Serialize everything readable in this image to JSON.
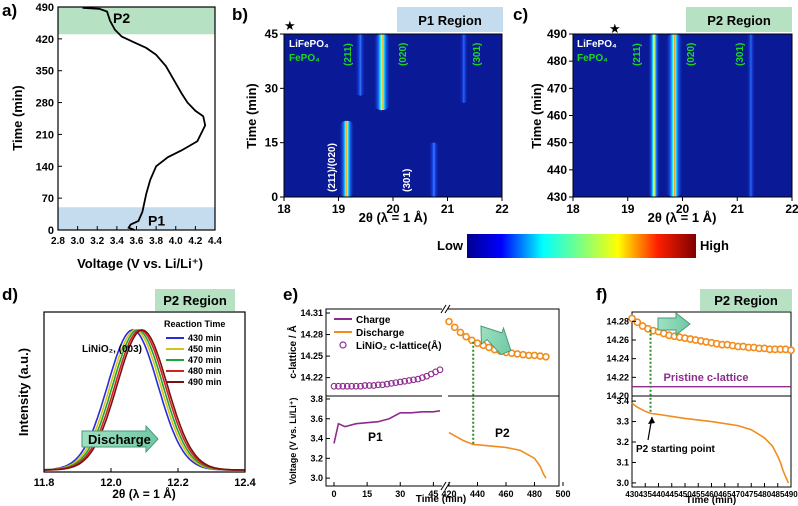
{
  "colors": {
    "p1_band": "#c5dcef",
    "p2_band": "#b6e2c3",
    "charge": "#8e2c8e",
    "discharge": "#f28c1c",
    "heat_bg": "#0a1a96",
    "green_label": "#1fd61f",
    "pristine": "#8e2c8e"
  },
  "panel_labels": {
    "a": "a)",
    "b": "b)",
    "c": "c)",
    "d": "d)",
    "e": "e)",
    "f": "f)"
  },
  "chart_data": [
    {
      "id": "a",
      "type": "line",
      "xlabel": "Voltage (V vs. Li/Li⁺)",
      "ylabel": "Time (min)",
      "xlim": [
        2.8,
        4.4
      ],
      "ylim": [
        0,
        490
      ],
      "xticks": [
        "2.8",
        "3.0",
        "3.2",
        "3.4",
        "3.6",
        "3.8",
        "4.0",
        "4.2",
        "4.4"
      ],
      "yticks": [
        "0",
        "70",
        "140",
        "210",
        "280",
        "350",
        "420",
        "490"
      ],
      "bands": [
        {
          "label": "P1",
          "y": [
            0,
            50
          ]
        },
        {
          "label": "P2",
          "y": [
            430,
            490
          ]
        }
      ],
      "x": [
        3.58,
        3.52,
        3.54,
        3.62,
        3.66,
        3.7,
        3.74,
        3.8,
        3.92,
        4.06,
        4.22,
        4.3,
        4.28,
        4.2,
        4.12,
        4.06,
        3.98,
        3.9,
        3.8,
        3.7,
        3.55,
        3.45,
        3.38,
        3.33,
        3.3,
        3.22,
        3.05
      ],
      "y": [
        0,
        5,
        12,
        20,
        40,
        80,
        110,
        140,
        160,
        175,
        195,
        230,
        250,
        262,
        280,
        300,
        330,
        360,
        385,
        400,
        415,
        425,
        440,
        460,
        480,
        486,
        488
      ]
    },
    {
      "id": "b",
      "type": "heatmap",
      "title": "P1 Region",
      "xlabel": "2θ (λ = 1 Å)",
      "ylabel": "Time (min)",
      "xlim": [
        18,
        22
      ],
      "ylim": [
        0,
        45
      ],
      "xticks": [
        "18",
        "19",
        "20",
        "21",
        "22"
      ],
      "yticks": [
        "0",
        "15",
        "30",
        "45"
      ],
      "legend": [
        "LiFePO₄",
        "FePO₄"
      ],
      "marker": "★",
      "peak_labels": [
        "(211)",
        "(020)",
        "(301)",
        "(211)/(020)",
        "(301)"
      ],
      "peaks": [
        {
          "x": 19.15,
          "y0": 0,
          "y1": 21,
          "w": 0.09,
          "i": 1.0
        },
        {
          "x": 19.8,
          "y0": 24,
          "y1": 45,
          "w": 0.1,
          "i": 0.85
        },
        {
          "x": 19.4,
          "y0": 28,
          "y1": 45,
          "w": 0.06,
          "i": 0.35
        },
        {
          "x": 20.75,
          "y0": 0,
          "y1": 15,
          "w": 0.06,
          "i": 0.4
        },
        {
          "x": 21.3,
          "y0": 26,
          "y1": 45,
          "w": 0.05,
          "i": 0.25
        }
      ]
    },
    {
      "id": "c",
      "type": "heatmap",
      "title": "P2 Region",
      "xlabel": "2θ (λ = 1 Å)",
      "ylabel": "Time (min)",
      "xlim": [
        18,
        22
      ],
      "ylim": [
        430,
        490
      ],
      "xticks": [
        "18",
        "19",
        "20",
        "21",
        "22"
      ],
      "yticks": [
        "430",
        "440",
        "450",
        "460",
        "470",
        "480",
        "490"
      ],
      "legend": [
        "LiFePO₄",
        "FePO₄"
      ],
      "marker": "★",
      "peak_labels": [
        "(211)",
        "(020)",
        "(301)"
      ],
      "peaks": [
        {
          "x": 19.48,
          "y0": 430,
          "y1": 490,
          "w": 0.07,
          "i": 0.55
        },
        {
          "x": 19.85,
          "y0": 430,
          "y1": 490,
          "w": 0.1,
          "i": 1.0
        },
        {
          "x": 21.25,
          "y0": 430,
          "y1": 490,
          "w": 0.05,
          "i": 0.25
        }
      ]
    },
    {
      "id": "colorbar",
      "type": "colorbar",
      "low": "Low",
      "high": "High"
    },
    {
      "id": "d",
      "type": "line",
      "title": "P2 Region",
      "xlabel": "2θ (λ = 1 Å)",
      "ylabel": "Intensity (a.u.)",
      "xlim": [
        11.8,
        12.4
      ],
      "xticks": [
        "11.8",
        "12.0",
        "12.2",
        "12.4"
      ],
      "annotation": "LiNiO₂, (003)",
      "arrow_label": "Discharge",
      "legend_title": "Reaction Time",
      "series": [
        {
          "name": "430 min",
          "color": "#2b2bd6",
          "center": 12.065
        },
        {
          "name": "450 min",
          "color": "#d4c316",
          "center": 12.073
        },
        {
          "name": "470 min",
          "color": "#22a336",
          "center": 12.08
        },
        {
          "name": "480 min",
          "color": "#d62020",
          "center": 12.087
        },
        {
          "name": "490 min",
          "color": "#7a1010",
          "center": 12.093
        }
      ]
    },
    {
      "id": "e",
      "type": "line",
      "xlabel": "Time (min)",
      "ylabel_top": "c-lattice / Å",
      "ylabel_bottom": "Voltage (V vs. Li/Li⁺)",
      "xticks_left": [
        "0",
        "15",
        "30",
        "45"
      ],
      "xticks_right": [
        "420",
        "440",
        "460",
        "480",
        "500"
      ],
      "yticks_top": [
        "14.22",
        "14.25",
        "14.28",
        "14.31"
      ],
      "yticks_bottom": [
        "3.0",
        "3.2",
        "3.4",
        "3.6",
        "3.8"
      ],
      "legend": [
        "Charge",
        "Discharge",
        "LiNiO₂ c-lattice(Å)"
      ],
      "labels": [
        "P1",
        "P2"
      ],
      "charge_voltage": {
        "t": [
          0,
          2,
          5,
          10,
          20,
          25,
          30,
          32,
          35,
          40,
          45,
          48
        ],
        "v": [
          3.35,
          3.55,
          3.52,
          3.55,
          3.57,
          3.6,
          3.66,
          3.66,
          3.66,
          3.67,
          3.67,
          3.68
        ]
      },
      "discharge_voltage": {
        "t": [
          420,
          425,
          430,
          437,
          445,
          460,
          470,
          480,
          484,
          486,
          488
        ],
        "v": [
          3.46,
          3.42,
          3.38,
          3.34,
          3.33,
          3.31,
          3.28,
          3.2,
          3.12,
          3.05,
          3.0
        ]
      },
      "c_lattice_charge": {
        "t": [
          0,
          2,
          4,
          6,
          8,
          10,
          12,
          14,
          16,
          18,
          20,
          22,
          24,
          26,
          28,
          30,
          32,
          34,
          36,
          38,
          40,
          42,
          44,
          46,
          48
        ],
        "c": [
          14.208,
          14.208,
          14.208,
          14.208,
          14.208,
          14.208,
          14.208,
          14.209,
          14.209,
          14.209,
          14.21,
          14.21,
          14.211,
          14.212,
          14.213,
          14.214,
          14.215,
          14.216,
          14.217,
          14.218,
          14.22,
          14.222,
          14.225,
          14.228,
          14.231
        ]
      },
      "c_lattice_discharge": {
        "t": [
          420,
          424,
          428,
          432,
          436,
          440,
          444,
          448,
          452,
          456,
          460,
          464,
          468,
          472,
          476,
          480,
          484,
          488
        ],
        "c": [
          14.298,
          14.29,
          14.283,
          14.277,
          14.272,
          14.268,
          14.265,
          14.262,
          14.259,
          14.257,
          14.255,
          14.254,
          14.253,
          14.252,
          14.251,
          14.251,
          14.25,
          14.249
        ]
      }
    },
    {
      "id": "f",
      "type": "line",
      "title": "P2 Region",
      "xlabel": "Time (min)",
      "xlim": [
        430,
        490
      ],
      "xticks": [
        "430",
        "435",
        "440",
        "445",
        "450",
        "455",
        "460",
        "465",
        "470",
        "475",
        "480",
        "485",
        "490"
      ],
      "yticks_top": [
        "14.20",
        "14.22",
        "14.24",
        "14.26",
        "14.28"
      ],
      "yticks_bottom": [
        "3.0",
        "3.1",
        "3.2",
        "3.3",
        "3.4"
      ],
      "pristine_label": "Pristine c-lattice",
      "pristine_value": 14.21,
      "annotation": "P2 starting point",
      "c_lattice": {
        "t": [
          430,
          432,
          434,
          436,
          438,
          440,
          442,
          444,
          446,
          448,
          450,
          452,
          454,
          456,
          458,
          460,
          462,
          464,
          466,
          468,
          470,
          472,
          474,
          476,
          478,
          480,
          482,
          484,
          486,
          488,
          490
        ],
        "c": [
          14.283,
          14.279,
          14.275,
          14.272,
          14.27,
          14.269,
          14.267,
          14.265,
          14.264,
          14.263,
          14.262,
          14.261,
          14.26,
          14.259,
          14.258,
          14.257,
          14.256,
          14.255,
          14.255,
          14.254,
          14.253,
          14.253,
          14.252,
          14.252,
          14.251,
          14.251,
          14.25,
          14.25,
          14.25,
          14.25,
          14.249
        ]
      },
      "voltage": {
        "t": [
          430,
          432,
          435,
          437,
          440,
          445,
          450,
          460,
          470,
          475,
          480,
          483,
          485,
          486,
          487,
          488,
          489
        ],
        "v": [
          3.39,
          3.37,
          3.35,
          3.34,
          3.335,
          3.325,
          3.315,
          3.3,
          3.28,
          3.26,
          3.22,
          3.18,
          3.13,
          3.1,
          3.06,
          3.03,
          3.0
        ]
      }
    }
  ]
}
